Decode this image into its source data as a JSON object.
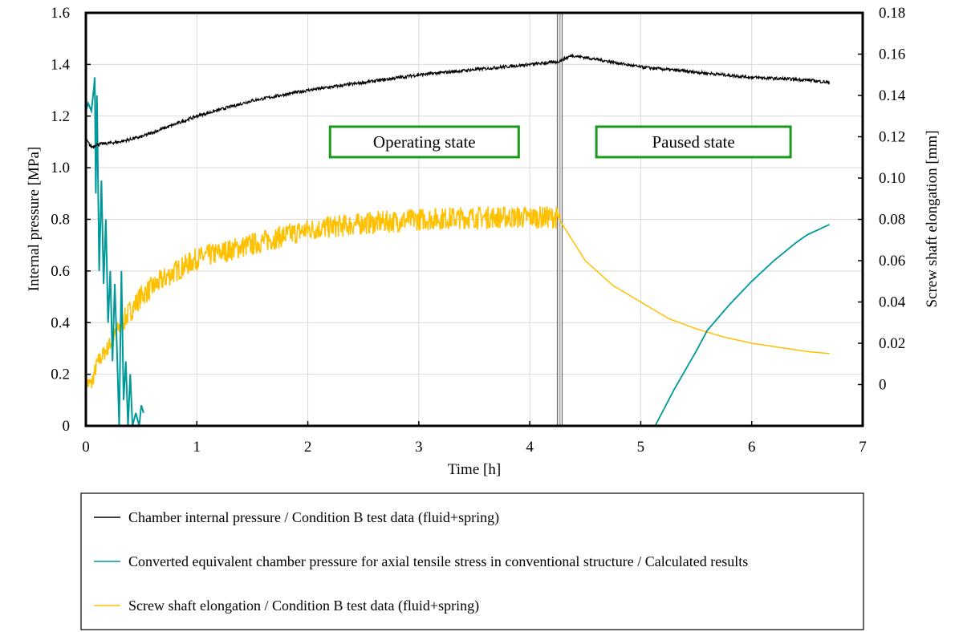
{
  "chart_data": {
    "type": "line",
    "xlabel": "Time [h]",
    "ylabel_left": "Internal pressure [MPa]",
    "ylabel_right": "Screw shaft elongation [mm]",
    "xlim": [
      0,
      7
    ],
    "ylim_left": [
      0,
      1.6
    ],
    "ylim_right": [
      -0.02,
      0.18
    ],
    "x_ticks": [
      "0",
      "1",
      "2",
      "3",
      "4",
      "5",
      "6",
      "7"
    ],
    "y_ticks_left": [
      "0",
      "0.2",
      "0.4",
      "0.6",
      "0.8",
      "1.0",
      "1.2",
      "1.4",
      "1.6"
    ],
    "y_ticks_right": [
      "0",
      "0.02",
      "0.04",
      "0.06",
      "0.08",
      "0.10",
      "0.12",
      "0.14",
      "0.16",
      "0.18"
    ],
    "grid": true,
    "legend_placement": "bottom",
    "phase_boundary_time": 4.27,
    "annotations": [
      {
        "text": "Operating state",
        "x_range": [
          2.2,
          3.9
        ],
        "y": 1.1
      },
      {
        "text": "Paused state",
        "x_range": [
          4.6,
          6.35
        ],
        "y": 1.1
      }
    ],
    "series": [
      {
        "name": "Chamber internal pressure / Condition B test data (fluid+spring)",
        "axis": "left",
        "color": "#000000",
        "x": [
          0,
          0.05,
          0.1,
          0.3,
          0.5,
          1,
          1.5,
          2,
          2.5,
          3,
          3.5,
          4,
          4.25,
          4.3,
          4.38,
          4.6,
          5,
          5.5,
          6,
          6.5,
          6.7
        ],
        "y": [
          1.11,
          1.08,
          1.09,
          1.1,
          1.12,
          1.2,
          1.26,
          1.3,
          1.33,
          1.36,
          1.38,
          1.4,
          1.41,
          1.42,
          1.435,
          1.42,
          1.39,
          1.37,
          1.35,
          1.34,
          1.33
        ]
      },
      {
        "name": "Converted equivalent chamber pressure for axial tensile stress in conventional structure / Calculated results",
        "axis": "left",
        "color": "#009999",
        "segments": [
          {
            "x": [
              0,
              0.02,
              0.05,
              0.07,
              0.08,
              0.09,
              0.1,
              0.12,
              0.14,
              0.16,
              0.18,
              0.2,
              0.22,
              0.24,
              0.26,
              0.28,
              0.3,
              0.32,
              0.34,
              0.36,
              0.38,
              0.4,
              0.42,
              0.45,
              0.48,
              0.5,
              0.52
            ],
            "y": [
              1.22,
              1.25,
              1.22,
              1.3,
              1.35,
              0.9,
              1.28,
              0.6,
              0.95,
              0.55,
              0.8,
              0.4,
              0.6,
              0.25,
              0.55,
              0.3,
              0,
              0.6,
              0.1,
              0.25,
              0,
              0.2,
              0,
              0.05,
              0,
              0.08,
              0.05
            ]
          },
          {
            "x": [
              5.13,
              5.3,
              5.5,
              5.6,
              5.8,
              6,
              6.2,
              6.4,
              6.5,
              6.7
            ],
            "y": [
              0,
              0.14,
              0.29,
              0.37,
              0.47,
              0.56,
              0.64,
              0.71,
              0.74,
              0.78
            ]
          }
        ]
      },
      {
        "name": "Screw shaft elongation / Condition B test data (fluid+spring)",
        "axis": "right",
        "color": "#FFC000",
        "x": [
          0,
          0.05,
          0.1,
          0.2,
          0.3,
          0.5,
          0.75,
          1,
          1.5,
          2,
          2.5,
          3,
          3.5,
          4,
          4.25,
          4.3,
          4.5,
          4.75,
          5,
          5.25,
          5.5,
          5.75,
          6,
          6.25,
          6.5,
          6.7
        ],
        "y": [
          0.001,
          0.0,
          0.01,
          0.018,
          0.028,
          0.043,
          0.053,
          0.061,
          0.068,
          0.075,
          0.078,
          0.08,
          0.081,
          0.081,
          0.081,
          0.077,
          0.06,
          0.048,
          0.04,
          0.032,
          0.027,
          0.023,
          0.02,
          0.018,
          0.016,
          0.015
        ]
      }
    ]
  }
}
